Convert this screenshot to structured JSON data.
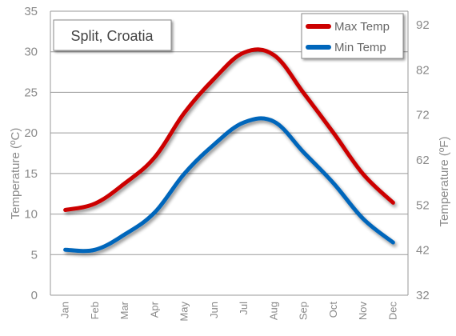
{
  "chart_data": {
    "type": "line",
    "title": "Split, Croatia",
    "categories": [
      "Jan",
      "Feb",
      "Mar",
      "Apr",
      "May",
      "Jun",
      "Jul",
      "Aug",
      "Sep",
      "Oct",
      "Nov",
      "Dec"
    ],
    "series": [
      {
        "name": "Max Temp",
        "color": "#cc0000",
        "values": [
          10.5,
          11.3,
          13.8,
          17.0,
          22.5,
          26.7,
          29.9,
          29.6,
          24.9,
          20.0,
          14.9,
          11.4
        ]
      },
      {
        "name": "Min Temp",
        "color": "#0066bb",
        "values": [
          5.6,
          5.6,
          7.5,
          10.2,
          15.0,
          18.6,
          21.3,
          21.4,
          17.6,
          13.8,
          9.4,
          6.5
        ]
      }
    ],
    "ylabel": "Temperature (ºC)",
    "ylim": [
      0,
      35
    ],
    "yticks": [
      0,
      5,
      10,
      15,
      20,
      25,
      30,
      35
    ],
    "y2label": "Temperature (ºF)",
    "y2lim": [
      32,
      95
    ],
    "y2ticks": [
      32,
      42,
      52,
      62,
      72,
      82,
      92
    ],
    "grid": true,
    "legend_position": "top-right"
  }
}
